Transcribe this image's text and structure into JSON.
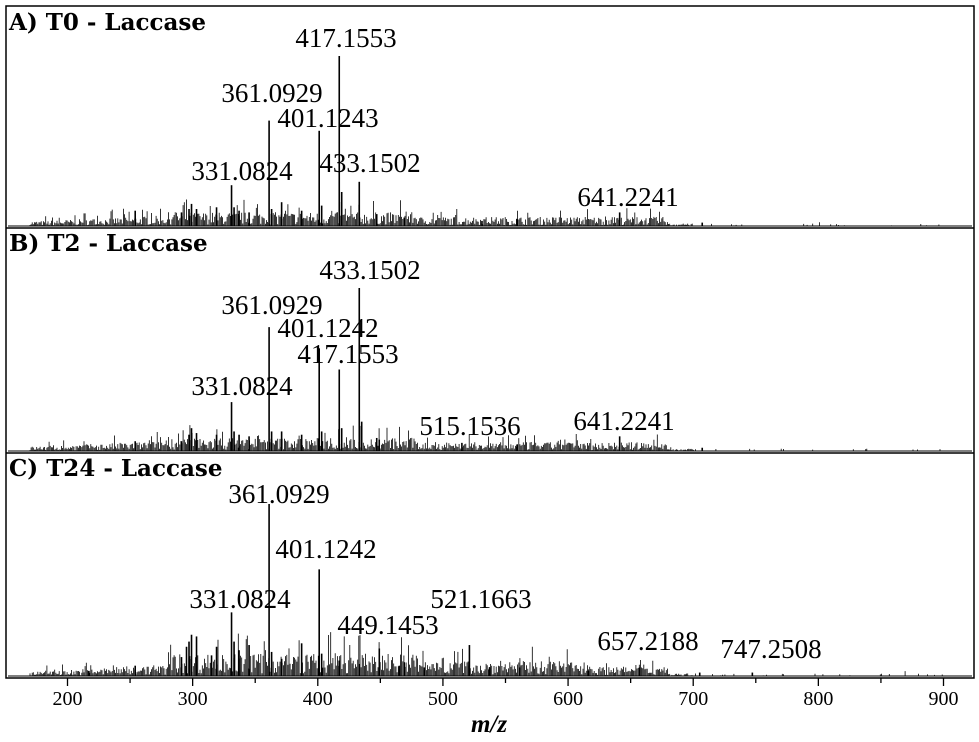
{
  "chart_data": {
    "type": "stacked mass spectra (stick plot)",
    "xlabel": "m/z",
    "xlim": [
      150,
      925
    ],
    "x_ticks": [
      200,
      300,
      400,
      500,
      600,
      700,
      800,
      900
    ],
    "ylabel": "",
    "grid": false,
    "panels": [
      {
        "title": "A) T0 - Laccase",
        "peaks": [
          {
            "mz": 254.1,
            "rel": 0.09
          },
          {
            "mz": 291.1,
            "rel": 0.08
          },
          {
            "mz": 297.1,
            "rel": 0.1
          },
          {
            "mz": 299.1,
            "rel": 0.13
          },
          {
            "mz": 303.1,
            "rel": 0.1
          },
          {
            "mz": 319.1,
            "rel": 0.11
          },
          {
            "mz": 331.0824,
            "rel": 0.24,
            "label": "331.0824"
          },
          {
            "mz": 333.1,
            "rel": 0.11
          },
          {
            "mz": 337.1,
            "rel": 0.09
          },
          {
            "mz": 345.1,
            "rel": 0.08
          },
          {
            "mz": 361.0929,
            "rel": 0.62,
            "label": "361.0929"
          },
          {
            "mz": 363.1,
            "rel": 0.1
          },
          {
            "mz": 371.1,
            "rel": 0.14
          },
          {
            "mz": 387.1,
            "rel": 0.09
          },
          {
            "mz": 401.1243,
            "rel": 0.56,
            "label": "401.1243"
          },
          {
            "mz": 403.1,
            "rel": 0.12
          },
          {
            "mz": 417.1553,
            "rel": 1.0,
            "label": "417.1553"
          },
          {
            "mz": 419.1,
            "rel": 0.2
          },
          {
            "mz": 433.1502,
            "rel": 0.26,
            "label": "433.1502"
          },
          {
            "mz": 447.1,
            "rel": 0.07
          },
          {
            "mz": 469.1,
            "rel": 0.05
          },
          {
            "mz": 531.2,
            "rel": 0.03
          },
          {
            "mz": 559.2,
            "rel": 0.04
          },
          {
            "mz": 641.2241,
            "rel": 0.08,
            "label": "641.2241"
          },
          {
            "mz": 707.2,
            "rel": 0.02
          }
        ]
      },
      {
        "title": "B) T2 - Laccase",
        "peaks": [
          {
            "mz": 254.1,
            "rel": 0.06
          },
          {
            "mz": 291.1,
            "rel": 0.06
          },
          {
            "mz": 297.1,
            "rel": 0.1
          },
          {
            "mz": 299.1,
            "rel": 0.14
          },
          {
            "mz": 303.1,
            "rel": 0.11
          },
          {
            "mz": 319.1,
            "rel": 0.1
          },
          {
            "mz": 331.0824,
            "rel": 0.3,
            "label": "331.0824"
          },
          {
            "mz": 333.1,
            "rel": 0.12
          },
          {
            "mz": 337.1,
            "rel": 0.1
          },
          {
            "mz": 345.1,
            "rel": 0.09
          },
          {
            "mz": 361.0929,
            "rel": 0.76,
            "label": "361.0929"
          },
          {
            "mz": 363.1,
            "rel": 0.12
          },
          {
            "mz": 371.1,
            "rel": 0.12
          },
          {
            "mz": 387.1,
            "rel": 0.1
          },
          {
            "mz": 401.1242,
            "rel": 0.63,
            "label": "401.1242"
          },
          {
            "mz": 403.1,
            "rel": 0.12
          },
          {
            "mz": 417.1553,
            "rel": 0.5,
            "label": "417.1553"
          },
          {
            "mz": 419.1,
            "rel": 0.14
          },
          {
            "mz": 433.1502,
            "rel": 1.0,
            "label": "433.1502"
          },
          {
            "mz": 435.1,
            "rel": 0.18
          },
          {
            "mz": 447.1,
            "rel": 0.08
          },
          {
            "mz": 449.1,
            "rel": 0.07
          },
          {
            "mz": 515.1536,
            "rel": 0.05,
            "label": "515.1536"
          },
          {
            "mz": 559.2,
            "rel": 0.04
          },
          {
            "mz": 641.2241,
            "rel": 0.09,
            "label": "641.2241"
          },
          {
            "mz": 707.2,
            "rel": 0.02
          }
        ]
      },
      {
        "title": "C) T24 - Laccase",
        "peaks": [
          {
            "mz": 217.1,
            "rel": 0.03
          },
          {
            "mz": 254.1,
            "rel": 0.06
          },
          {
            "mz": 291.1,
            "rel": 0.11
          },
          {
            "mz": 295.1,
            "rel": 0.17
          },
          {
            "mz": 297.1,
            "rel": 0.2
          },
          {
            "mz": 299.1,
            "rel": 0.24
          },
          {
            "mz": 303.1,
            "rel": 0.23
          },
          {
            "mz": 315.1,
            "rel": 0.12
          },
          {
            "mz": 319.1,
            "rel": 0.17
          },
          {
            "mz": 331.0824,
            "rel": 0.37,
            "label": "331.0824"
          },
          {
            "mz": 333.1,
            "rel": 0.2
          },
          {
            "mz": 337.1,
            "rel": 0.15
          },
          {
            "mz": 345.1,
            "rel": 0.18
          },
          {
            "mz": 361.0929,
            "rel": 1.0,
            "label": "361.0929"
          },
          {
            "mz": 363.1,
            "rel": 0.14
          },
          {
            "mz": 371.1,
            "rel": 0.1
          },
          {
            "mz": 387.1,
            "rel": 0.19
          },
          {
            "mz": 401.1242,
            "rel": 0.62,
            "label": "401.1242"
          },
          {
            "mz": 403.1,
            "rel": 0.13
          },
          {
            "mz": 417.1,
            "rel": 0.09
          },
          {
            "mz": 433.1,
            "rel": 0.07
          },
          {
            "mz": 449.1453,
            "rel": 0.16,
            "label": "449.1453"
          },
          {
            "mz": 465.2,
            "rel": 0.06
          },
          {
            "mz": 469.1,
            "rel": 0.08
          },
          {
            "mz": 485.2,
            "rel": 0.05
          },
          {
            "mz": 521.1663,
            "rel": 0.18,
            "label": "521.1663"
          },
          {
            "mz": 537.2,
            "rel": 0.05
          },
          {
            "mz": 561.2,
            "rel": 0.05
          },
          {
            "mz": 616.2,
            "rel": 0.03
          },
          {
            "mz": 657.2188,
            "rel": 0.05,
            "label": "657.2188"
          },
          {
            "mz": 705.2,
            "rel": 0.02
          },
          {
            "mz": 747.2508,
            "rel": 0.02,
            "label": "747.2508"
          }
        ]
      }
    ]
  }
}
